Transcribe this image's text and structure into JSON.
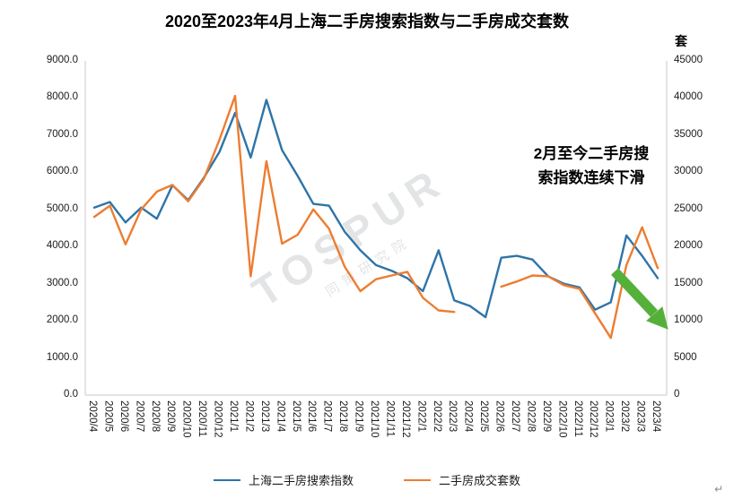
{
  "chart": {
    "title": "2020至2023年4月上海二手房搜索指数与二手房成交套数",
    "right_axis_unit": "套",
    "annotation_line1": "2月至今二手房搜",
    "annotation_line2": "索指数连续下滑",
    "watermark_line1": "TOSPUR",
    "watermark_line2": "同策研究院",
    "return_mark": "↵",
    "colors": {
      "arrow": "#55b03a",
      "axis_line": "#c8c8c8"
    }
  },
  "chart_data": {
    "type": "line",
    "title": "2020至2023年4月上海二手房搜索指数与二手房成交套数",
    "grid": false,
    "legend_position": "bottom",
    "categories": [
      "2020/4",
      "2020/5",
      "2020/6",
      "2020/7",
      "2020/8",
      "2020/9",
      "2020/10",
      "2020/11",
      "2020/12",
      "2021/1",
      "2021/2",
      "2021/3",
      "2021/4",
      "2021/5",
      "2021/6",
      "2021/7",
      "2021/8",
      "2021/9",
      "2021/10",
      "2021/11",
      "2021/12",
      "2022/1",
      "2022/2",
      "2022/3",
      "2022/4",
      "2022/5",
      "2022/6",
      "2022/7",
      "2022/8",
      "2022/9",
      "2022/10",
      "2022/11",
      "2022/12",
      "2023/1",
      "2023/2",
      "2023/3",
      "2023/4"
    ],
    "left_axis": {
      "label": "",
      "min": 0,
      "max": 9000,
      "step": 1000,
      "ticks": [
        "0.0",
        "1000.0",
        "2000.0",
        "3000.0",
        "4000.0",
        "5000.0",
        "6000.0",
        "7000.0",
        "8000.0",
        "9000.0"
      ]
    },
    "right_axis": {
      "label": "套",
      "min": 0,
      "max": 45000,
      "step": 5000,
      "ticks": [
        "0",
        "5000",
        "10000",
        "15000",
        "20000",
        "25000",
        "30000",
        "35000",
        "40000",
        "45000"
      ]
    },
    "series": [
      {
        "name": "上海二手房搜索指数",
        "axis": "left",
        "color": "#2e74a8",
        "values": [
          5050,
          5200,
          4650,
          5050,
          4750,
          5650,
          5250,
          5850,
          6550,
          7600,
          6400,
          7950,
          6600,
          5900,
          5150,
          5100,
          4400,
          3900,
          3500,
          3350,
          3150,
          2800,
          3900,
          2550,
          2400,
          2100,
          3700,
          3750,
          3650,
          3200,
          3000,
          2900,
          2300,
          2500,
          4300,
          3750,
          3150
        ]
      },
      {
        "name": "二手房成交套数",
        "axis": "right",
        "color": "#ED7D31",
        "values": [
          24000,
          25500,
          20300,
          25000,
          27400,
          28300,
          26100,
          29100,
          34400,
          40300,
          16000,
          31500,
          20400,
          21600,
          25000,
          22400,
          17300,
          14000,
          15600,
          16100,
          16600,
          13100,
          11400,
          11200,
          null,
          null,
          14600,
          15300,
          16100,
          16000,
          14800,
          14300,
          11000,
          7700,
          17500,
          22600,
          17100
        ]
      }
    ]
  }
}
